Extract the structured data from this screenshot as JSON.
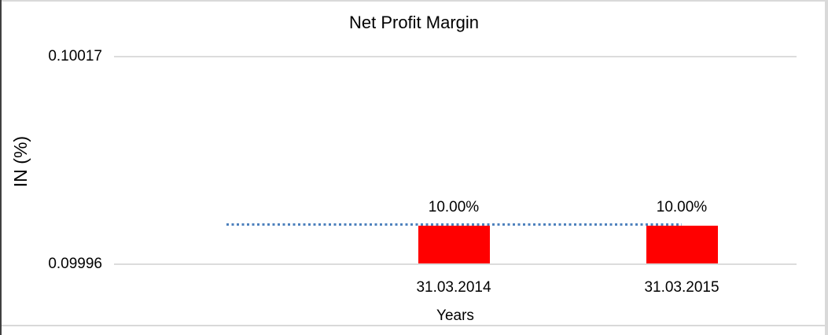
{
  "chart": {
    "title": "Net Profit Margin",
    "y_axis": {
      "title": "IN (%)",
      "tick_top": "0.10017",
      "tick_bottom": "0.09996"
    },
    "x_axis": {
      "title": "Years",
      "categories": [
        "31.03.2014",
        "31.03.2015"
      ]
    },
    "bars": [
      {
        "category": "31.03.2014",
        "label": "10.00%"
      },
      {
        "category": "31.03.2015",
        "label": "10.00%"
      }
    ],
    "colors": {
      "bar": "#FF0000",
      "trendline": "#4E81BD",
      "gridline": "#D9D9D9",
      "text": "#000000"
    }
  },
  "chart_data": {
    "type": "bar",
    "title": "Net Profit Margin",
    "categories": [
      "31.03.2014",
      "31.03.2015"
    ],
    "values": [
      0.1,
      0.1
    ],
    "data_labels": [
      "10.00%",
      "10.00%"
    ],
    "xlabel": "Years",
    "ylabel": "IN (%)",
    "y_ticks": [
      0.09996,
      0.10017
    ],
    "y_tick_labels": [
      "0.09996",
      "0.10017"
    ],
    "ylim": [
      0.09996,
      0.10017
    ],
    "grid": true,
    "legend": false,
    "bar_color": "#FF0000",
    "trendline": {
      "type": "linear",
      "style": "dotted",
      "color": "#4E81BD",
      "value": 0.1
    }
  }
}
